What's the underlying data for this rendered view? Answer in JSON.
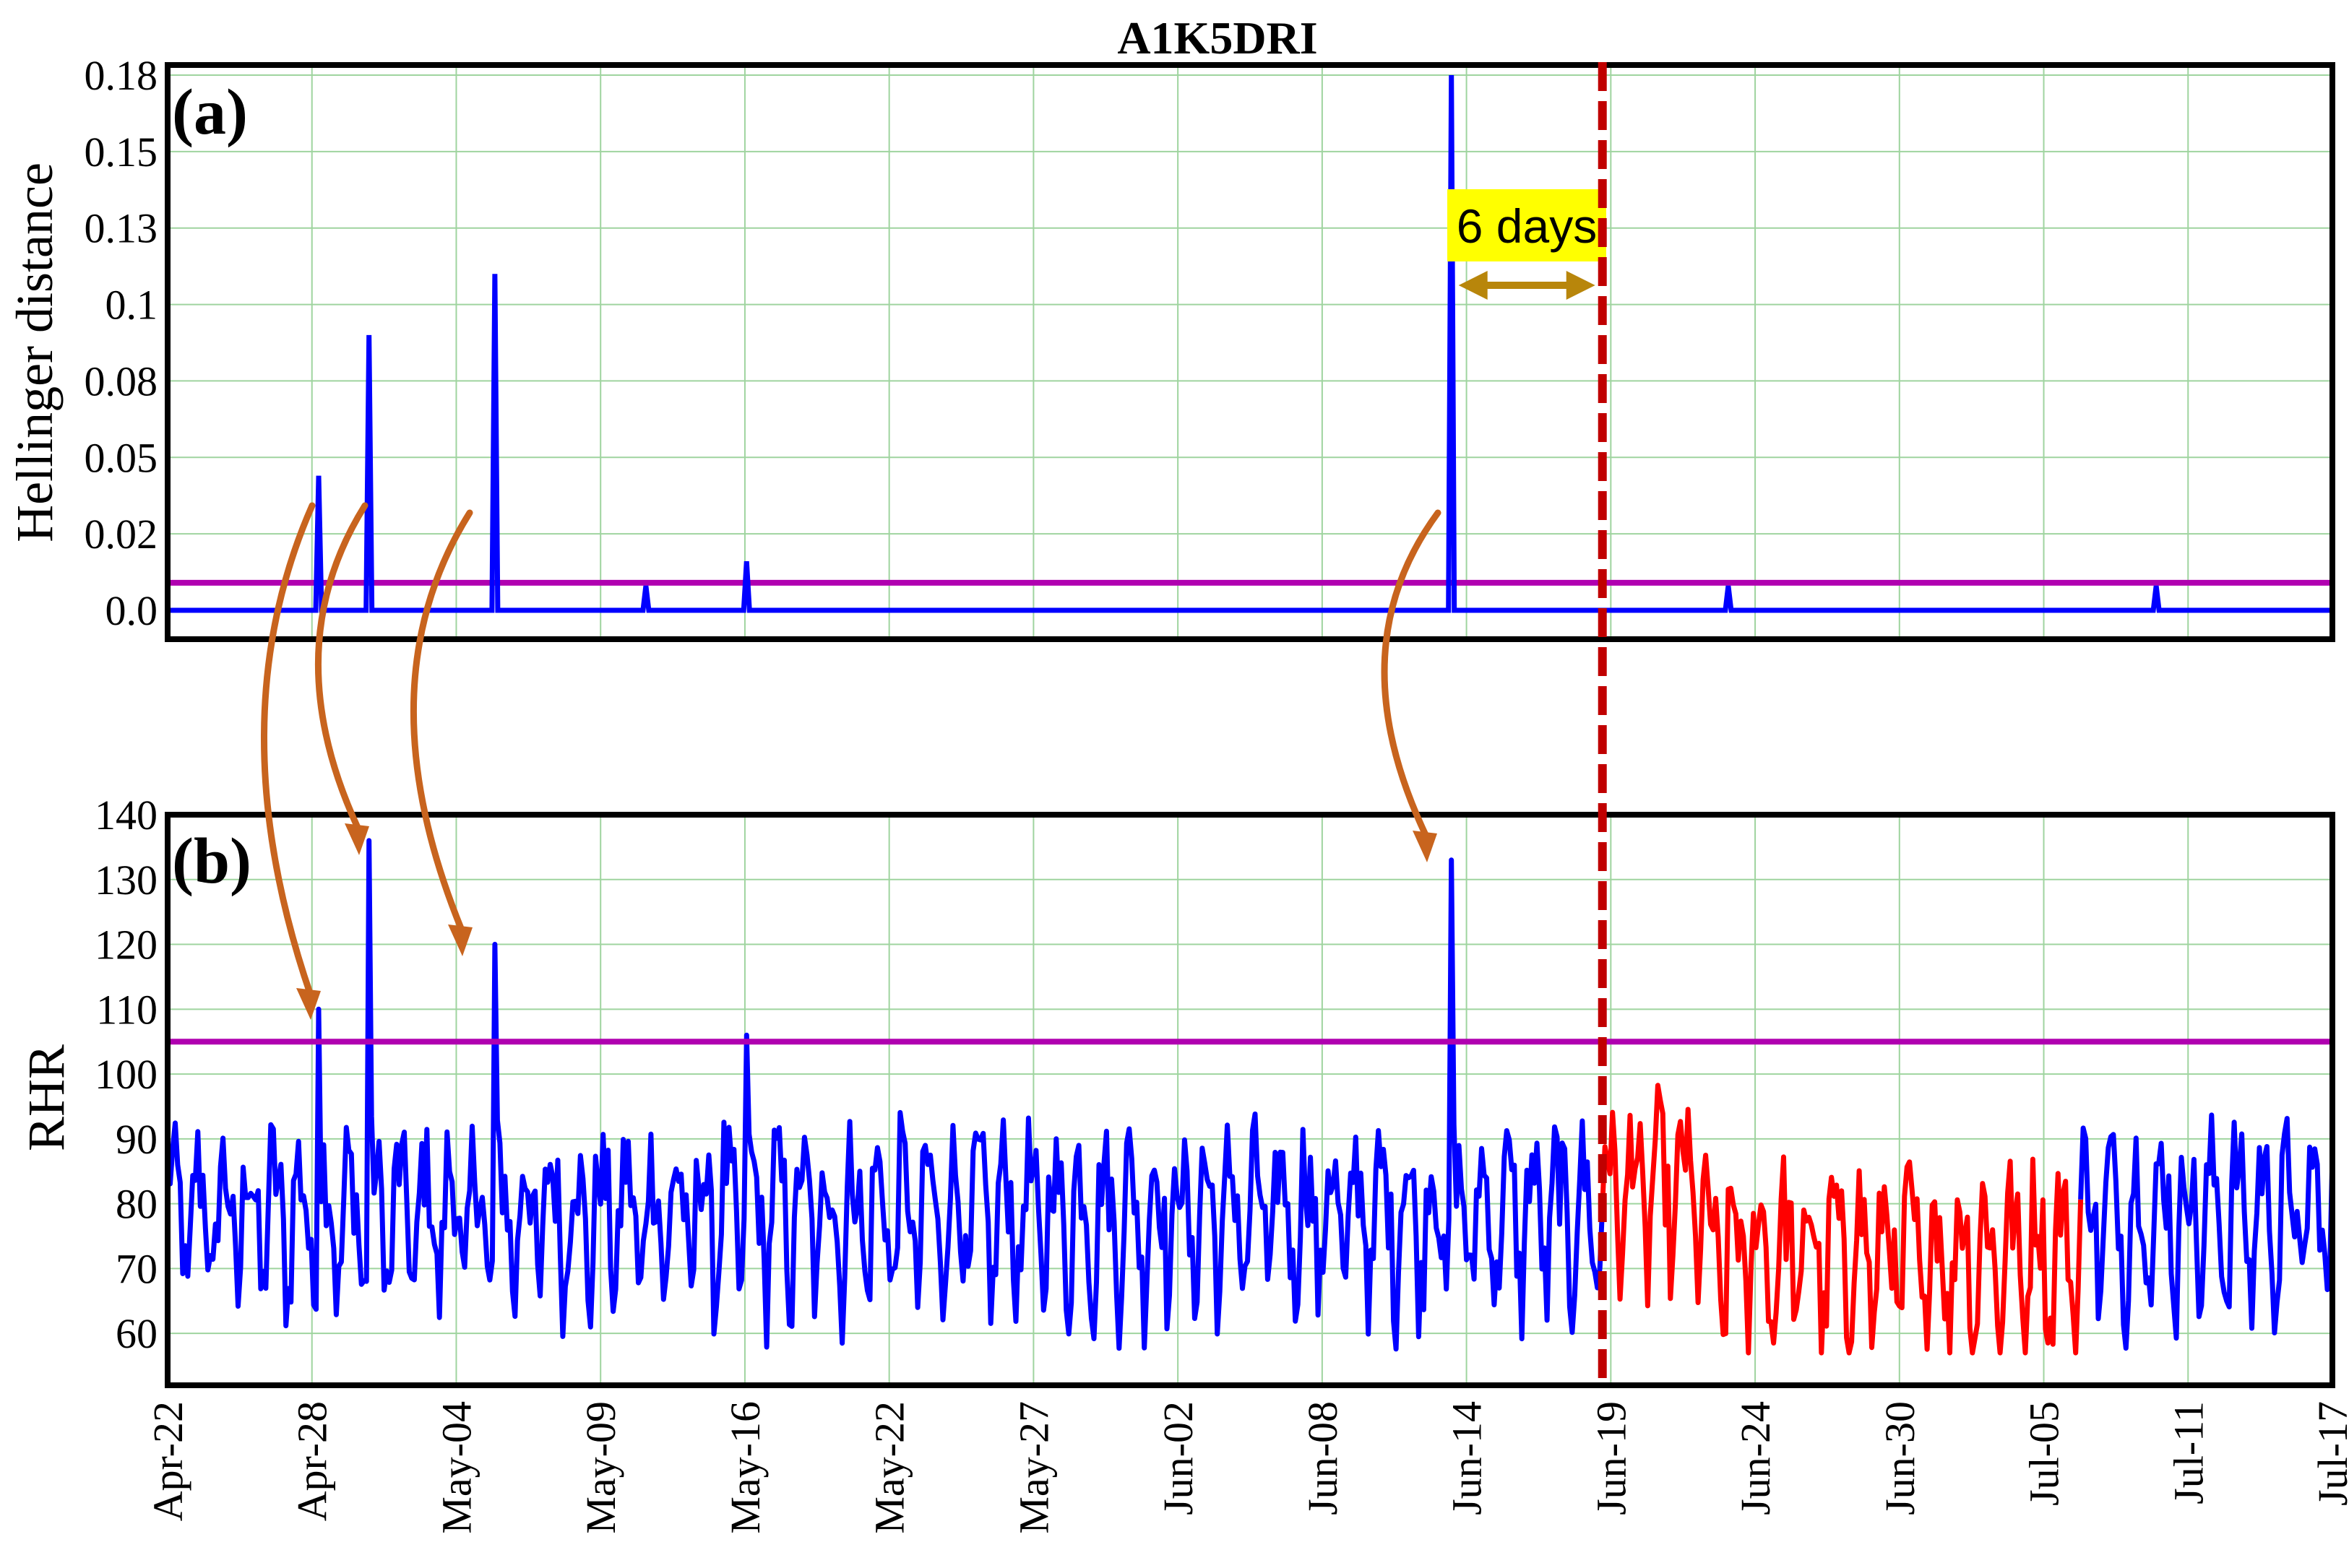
{
  "chart_data": [
    {
      "type": "line",
      "panel": "(a)",
      "title": "A1K5DRI",
      "ylabel": "Hellinger distance",
      "yticks": [
        "0.0",
        "0.02",
        "0.05",
        "0.08",
        "0.1",
        "0.13",
        "0.15",
        "0.18"
      ],
      "ylim": [
        -0.008,
        0.185
      ],
      "x_range": [
        "2021-04-22",
        "2021-07-17"
      ],
      "threshold": 0.009,
      "threshold_color": "#b000b0",
      "line_color": "#0000ff",
      "baseline": 0.0,
      "spikes": [
        {
          "x": "2021-04-28",
          "y": 0.044
        },
        {
          "x": "2021-04-30",
          "y": 0.09
        },
        {
          "x": "2021-05-05",
          "y": 0.11
        },
        {
          "x": "2021-05-11",
          "y": 0.008
        },
        {
          "x": "2021-05-15",
          "y": 0.016
        },
        {
          "x": "2021-06-12",
          "y": 0.177
        },
        {
          "x": "2021-06-23",
          "y": 0.008
        },
        {
          "x": "2021-07-10",
          "y": 0.008
        }
      ],
      "annotation": {
        "text": "6 days",
        "from": "2021-06-12",
        "to": "2021-06-18",
        "highlight": "#ffff00",
        "arrow_color": "#b8860b"
      },
      "onset_marker": {
        "x": "2021-06-18",
        "color": "#c00000"
      }
    },
    {
      "type": "line",
      "panel": "(b)",
      "ylabel": "RHR",
      "yticks": [
        "60",
        "70",
        "80",
        "90",
        "100",
        "110",
        "120",
        "130",
        "140"
      ],
      "ylim": [
        52,
        140
      ],
      "x_range": [
        "2021-04-22",
        "2021-07-17"
      ],
      "xticks": [
        "Apr-22",
        "Apr-28",
        "May-04",
        "May-09",
        "May-16",
        "May-22",
        "May-27",
        "Jun-02",
        "Jun-08",
        "Jun-14",
        "Jun-19",
        "Jun-24",
        "Jun-30",
        "Jul-05",
        "Jul-11",
        "Jul-17"
      ],
      "threshold": 105,
      "threshold_color": "#b000b0",
      "series": [
        {
          "segment": "before",
          "color": "#0000ff",
          "x_from": "2021-04-22",
          "x_to": "2021-06-18"
        },
        {
          "segment": "sick",
          "color": "#ff0000",
          "x_from": "2021-06-18",
          "x_to": "2021-07-07"
        },
        {
          "segment": "after",
          "color": "#0000ff",
          "x_from": "2021-07-07",
          "x_to": "2021-07-17"
        }
      ],
      "peaks": [
        {
          "x": "2021-04-28",
          "y": 110
        },
        {
          "x": "2021-04-30",
          "y": 136
        },
        {
          "x": "2021-05-05",
          "y": 120
        },
        {
          "x": "2021-05-15",
          "y": 106
        },
        {
          "x": "2021-06-12",
          "y": 133
        }
      ],
      "linked_arrows_color": "#c8641e"
    }
  ]
}
